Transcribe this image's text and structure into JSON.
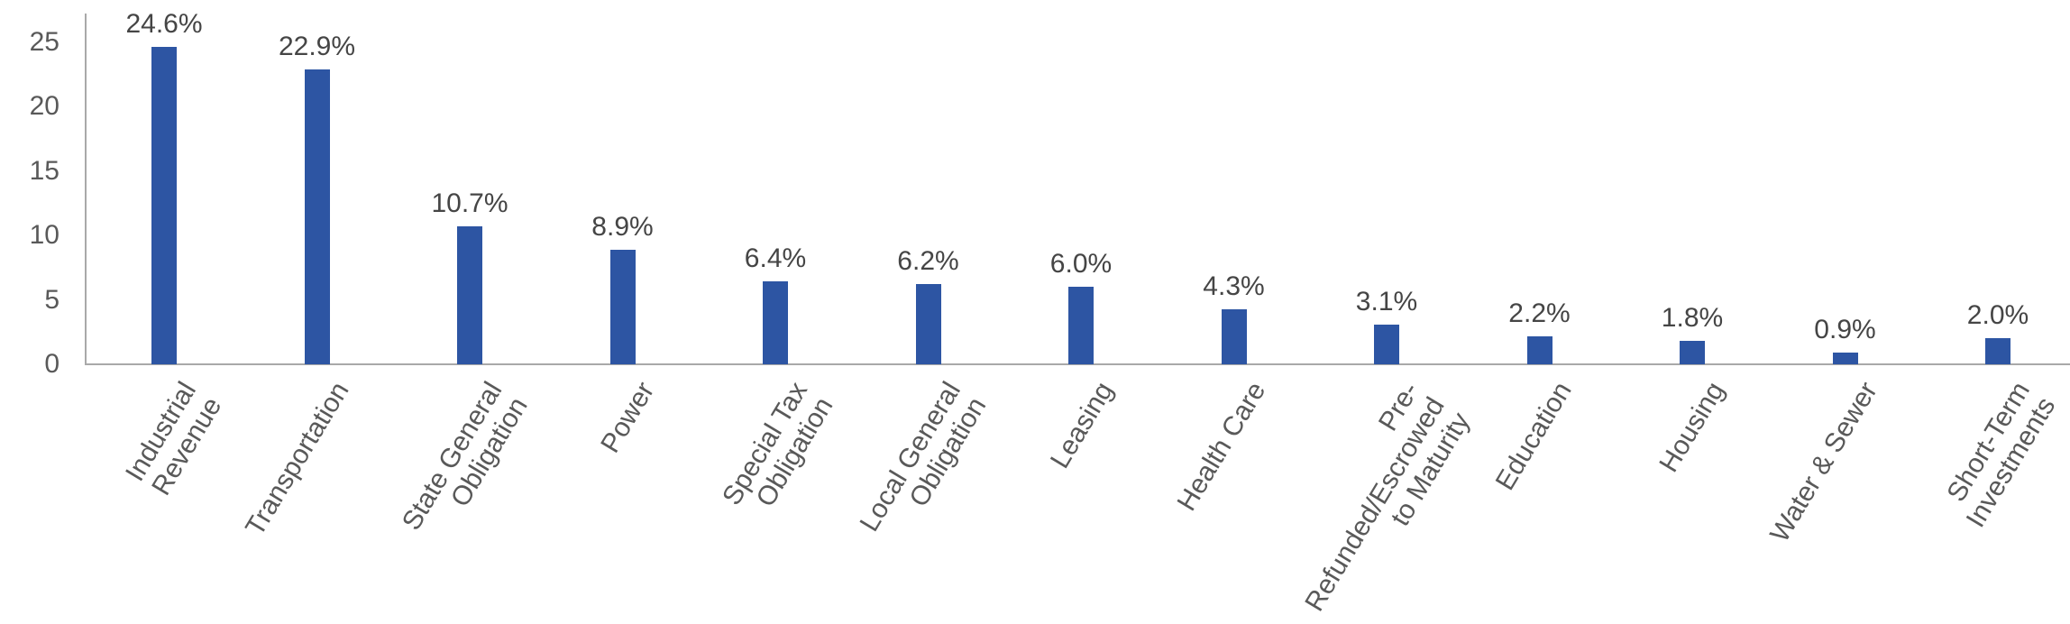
{
  "chart_data": {
    "type": "bar",
    "title": "",
    "xlabel": "",
    "ylabel": "",
    "categories": [
      "Industrial\nRevenue",
      "Transportation",
      "State General\nObligation",
      "Power",
      "Special Tax\nObligation",
      "Local General\nObligation",
      "Leasing",
      "Health Care",
      "Pre-\nRefunded/Escrowed\nto Maturity",
      "Education",
      "Housing",
      "Water & Sewer",
      "Short-Term\nInvestments"
    ],
    "values": [
      24.6,
      22.9,
      10.7,
      8.9,
      6.4,
      6.2,
      6.0,
      4.3,
      3.1,
      2.2,
      1.8,
      0.9,
      2.0
    ],
    "data_labels": [
      "24.6%",
      "22.9%",
      "10.7%",
      "8.9%",
      "6.4%",
      "6.2%",
      "6.0%",
      "4.3%",
      "3.1%",
      "2.2%",
      "1.8%",
      "0.9%",
      "2.0%"
    ],
    "ytick_labels": [
      "0",
      "5",
      "10",
      "15",
      "20",
      "25"
    ],
    "yticks": [
      0,
      5,
      10,
      15,
      20,
      25
    ],
    "ylim": [
      0,
      25.5
    ],
    "grid": "off",
    "legend": "none",
    "bar_color": "#2d55a3",
    "axis_color": "#a9a9a9",
    "tick_label_color": "#595959",
    "data_label_color": "#454545"
  }
}
